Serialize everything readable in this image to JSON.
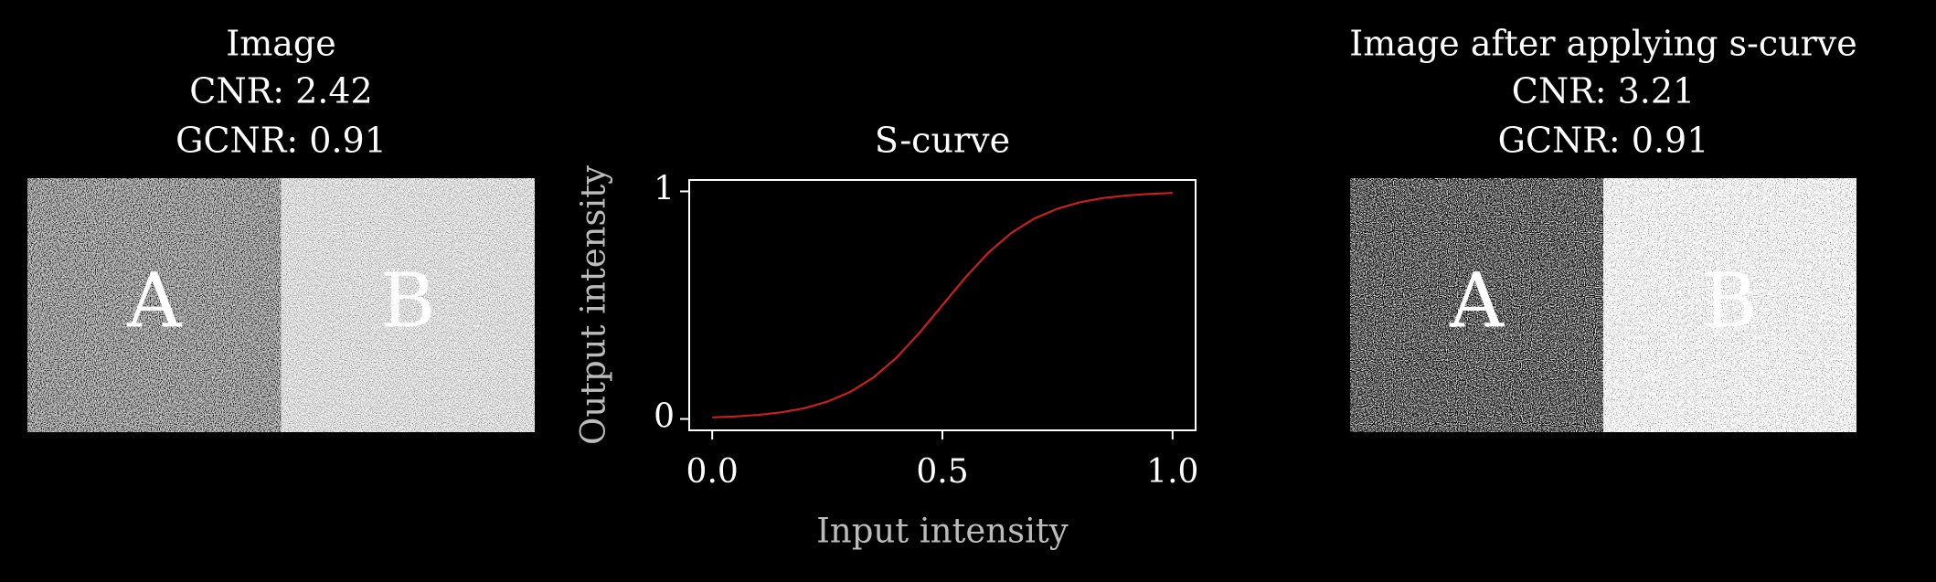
{
  "chart_data": [
    {
      "type": "image",
      "title": [
        "Image",
        "CNR: 2.42",
        "GCNR: 0.91"
      ],
      "regions": [
        "A",
        "B"
      ]
    },
    {
      "type": "line",
      "title": "S-curve",
      "xlabel": "Input intensity",
      "ylabel": "Output intensity",
      "x": [
        0,
        0.05,
        0.1,
        0.15,
        0.2,
        0.25,
        0.3,
        0.35,
        0.4,
        0.45,
        0.5,
        0.55,
        0.6,
        0.65,
        0.7,
        0.75,
        0.8,
        0.85,
        0.9,
        0.95,
        1
      ],
      "series": [
        {
          "color": "#c8201e",
          "values": [
            0.007,
            0.011,
            0.018,
            0.029,
            0.047,
            0.076,
            0.119,
            0.182,
            0.269,
            0.378,
            0.5,
            0.622,
            0.731,
            0.818,
            0.881,
            0.924,
            0.953,
            0.971,
            0.982,
            0.989,
            0.993
          ]
        }
      ],
      "xlim": [
        -0.05,
        1.05
      ],
      "ylim": [
        -0.05,
        1.05
      ],
      "xticks": [
        {
          "value": 0,
          "label": "0.0"
        },
        0.5,
        {
          "value": 1,
          "label": "1.0"
        }
      ],
      "yticks": [
        0,
        1
      ]
    },
    {
      "type": "image",
      "title": [
        "Image after applying s-curve",
        "CNR: 3.21",
        "GCNR: 0.91"
      ],
      "regions": [
        "A",
        "B"
      ]
    }
  ]
}
